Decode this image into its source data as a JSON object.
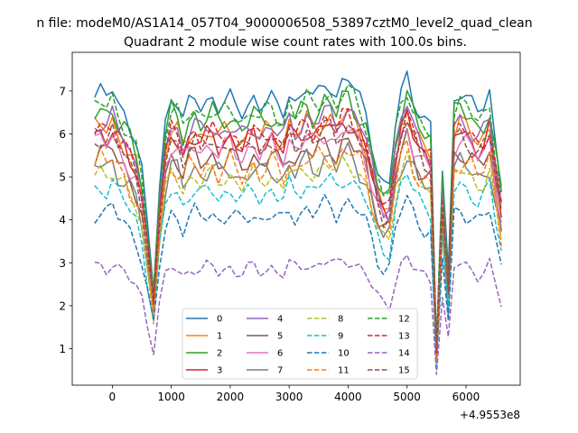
{
  "figure_title": "n file: modeM0/AS1A14_057T04_9000006508_53897cztM0_level2_quad_clean",
  "chart_data": {
    "type": "line",
    "title": "Quadrant 2 module wise count rates with 100.0s bins.",
    "xlabel": "",
    "ylabel": "",
    "x_offset_label": "+4.9553e8",
    "xlim": [
      -680,
      6920
    ],
    "ylim": [
      0.15,
      7.9
    ],
    "x_ticks": [
      0,
      1000,
      2000,
      3000,
      4000,
      5000,
      6000
    ],
    "x_tick_labels": [
      "0",
      "1000",
      "2000",
      "3000",
      "4000",
      "5000",
      "6000"
    ],
    "y_ticks": [
      1,
      2,
      3,
      4,
      5,
      6,
      7
    ],
    "y_tick_labels": [
      "1",
      "2",
      "3",
      "4",
      "5",
      "6",
      "7"
    ],
    "grid": false,
    "legend_position": "lower center",
    "legend_columns": 4,
    "x": [
      -300,
      -200,
      -100,
      0,
      100,
      200,
      300,
      400,
      500,
      600,
      700,
      800,
      900,
      1000,
      1100,
      1200,
      1300,
      1400,
      1500,
      1600,
      1700,
      1800,
      1900,
      2000,
      2100,
      2200,
      2300,
      2400,
      2500,
      2600,
      2700,
      2800,
      2900,
      3000,
      3100,
      3200,
      3300,
      3400,
      3500,
      3600,
      3700,
      3800,
      3900,
      4000,
      4100,
      4200,
      4300,
      4400,
      4500,
      4600,
      4700,
      4800,
      4900,
      5000,
      5100,
      5200,
      5300,
      5400,
      5500,
      5600,
      5700,
      5800,
      5900,
      6000,
      6100,
      6200,
      6300,
      6400,
      6500,
      6600
    ],
    "series": [
      {
        "name": "0",
        "color": "#1f77b4",
        "dash": "solid",
        "base": 6.85,
        "amp": 0.2
      },
      {
        "name": "1",
        "color": "#ff7f0e",
        "dash": "solid",
        "base": 6.1,
        "amp": 0.35
      },
      {
        "name": "2",
        "color": "#2ca02c",
        "dash": "solid",
        "base": 6.45,
        "amp": 0.35
      },
      {
        "name": "3",
        "color": "#d62728",
        "dash": "solid",
        "base": 5.95,
        "amp": 0.3
      },
      {
        "name": "4",
        "color": "#9467bd",
        "dash": "solid",
        "base": 6.2,
        "amp": 0.3
      },
      {
        "name": "5",
        "color": "#8c564b",
        "dash": "solid",
        "base": 5.5,
        "amp": 0.3
      },
      {
        "name": "6",
        "color": "#e377c2",
        "dash": "solid",
        "base": 5.75,
        "amp": 0.3
      },
      {
        "name": "7",
        "color": "#7f7f7f",
        "dash": "solid",
        "base": 5.2,
        "amp": 0.35
      },
      {
        "name": "8",
        "color": "#bcbd22",
        "dash": "dashed",
        "base": 5.05,
        "amp": 0.25
      },
      {
        "name": "9",
        "color": "#17becf",
        "dash": "dashed",
        "base": 4.7,
        "amp": 0.25
      },
      {
        "name": "10",
        "color": "#1f77b4",
        "dash": "dashed",
        "base": 4.15,
        "amp": 0.25
      },
      {
        "name": "11",
        "color": "#ff7f0e",
        "dash": "dashed",
        "base": 5.3,
        "amp": 0.35
      },
      {
        "name": "12",
        "color": "#2ca02c",
        "dash": "dashed",
        "base": 6.6,
        "amp": 0.3
      },
      {
        "name": "13",
        "color": "#d62728",
        "dash": "dashed",
        "base": 6.05,
        "amp": 0.3
      },
      {
        "name": "14",
        "color": "#9467bd",
        "dash": "dashed",
        "base": 2.9,
        "amp": 0.2
      },
      {
        "name": "15",
        "color": "#8c564b",
        "dash": "dashed",
        "base": 5.85,
        "amp": 0.3
      }
    ],
    "envelope": [
      1.0,
      1.02,
      1.0,
      1.03,
      0.98,
      0.95,
      0.9,
      0.85,
      0.75,
      0.55,
      0.35,
      0.7,
      0.92,
      1.0,
      0.98,
      0.92,
      0.98,
      1.0,
      0.97,
      0.99,
      1.0,
      0.96,
      0.98,
      1.0,
      0.97,
      0.95,
      0.98,
      1.0,
      0.96,
      0.98,
      1.0,
      0.97,
      0.95,
      1.02,
      0.98,
      1.0,
      1.03,
      1.0,
      1.02,
      1.05,
      1.04,
      1.0,
      1.05,
      1.06,
      1.03,
      1.0,
      0.95,
      0.85,
      0.75,
      0.7,
      0.7,
      0.9,
      1.02,
      1.08,
      1.0,
      0.95,
      0.92,
      0.9,
      0.15,
      0.75,
      0.4,
      1.0,
      1.02,
      1.0,
      0.98,
      0.95,
      0.97,
      1.02,
      0.85,
      0.7
    ]
  }
}
